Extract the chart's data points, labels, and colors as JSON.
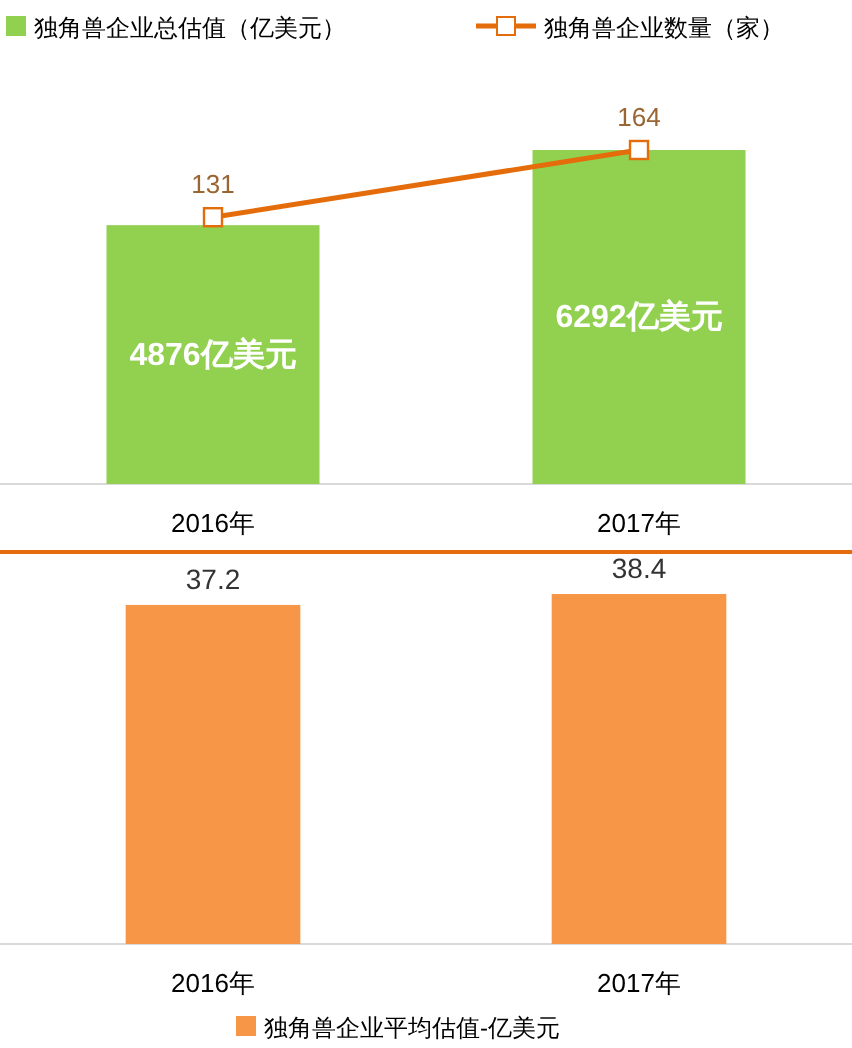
{
  "chart_data": [
    {
      "type": "bar",
      "categories": [
        "2016年",
        "2017年"
      ],
      "legend": "top",
      "series": [
        {
          "name": "独角兽企业总估值（亿美元）",
          "type": "bar",
          "color": "#92d050",
          "values": [
            4876,
            6292
          ],
          "value_labels": [
            "4876亿美元",
            "6292亿美元"
          ]
        },
        {
          "name": "独角兽企业数量（家）",
          "type": "line",
          "axis": "y2",
          "color": "#e46c0a",
          "values": [
            131,
            164
          ],
          "marker": "square",
          "data_labels": true
        }
      ]
    },
    {
      "type": "bar",
      "categories": [
        "2016年",
        "2017年"
      ],
      "legend": "bottom",
      "data_labels": true,
      "series": [
        {
          "name": "独角兽企业平均估值-亿美元",
          "color": "#f79646",
          "values": [
            37.2,
            38.4
          ]
        }
      ]
    }
  ]
}
